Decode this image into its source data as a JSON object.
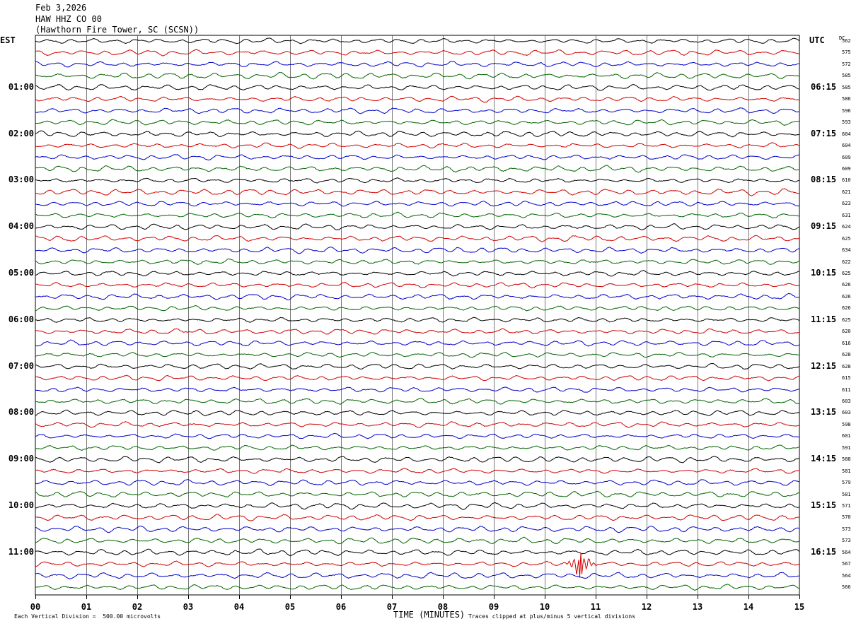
{
  "header": {
    "date": "Feb 3,2026",
    "station": "HAW HHZ CO 00",
    "location": "(Hawthorn Fire Tower, SC (SCSN))"
  },
  "left_zone_label": "EST",
  "right_zone_label": "UTC",
  "dc_label": "DC",
  "x_axis_title": "TIME (MINUTES)",
  "footer": {
    "scale_note": "Each Vertical Division =  500.00 microvolts",
    "clip_note": "Traces clipped at plus/minus 5 vertical divisions"
  },
  "chart_data": {
    "type": "line",
    "title": "",
    "xlabel": "TIME (MINUTES)",
    "xlim": [
      0,
      15
    ],
    "x_ticks": [
      "00",
      "01",
      "02",
      "03",
      "04",
      "05",
      "06",
      "07",
      "08",
      "09",
      "10",
      "11",
      "12",
      "13",
      "14",
      "15"
    ],
    "left_hour_labels": [
      "01:00",
      "02:00",
      "03:00",
      "04:00",
      "05:00",
      "06:00",
      "07:00",
      "08:00",
      "09:00",
      "10:00",
      "11:00"
    ],
    "right_hour_labels": [
      "06:15",
      "07:15",
      "08:15",
      "09:15",
      "10:15",
      "11:15",
      "12:15",
      "13:15",
      "14:15",
      "15:15",
      "16:15"
    ],
    "trace_colors": [
      "#000000",
      "#d00000",
      "#0000c8",
      "#006400"
    ],
    "dc_offsets": [
      562,
      575,
      572,
      585,
      585,
      586,
      596,
      593,
      604,
      604,
      609,
      609,
      610,
      621,
      623,
      631,
      624,
      625,
      634,
      622,
      625,
      626,
      626,
      626,
      625,
      620,
      616,
      628,
      628,
      615,
      611,
      603,
      603,
      598,
      601,
      591,
      588,
      581,
      579,
      581,
      571,
      570,
      573,
      573,
      564,
      567,
      564,
      566
    ],
    "events": [
      {
        "trace_index": 45,
        "minute": 10.7,
        "amplitude": "large"
      }
    ]
  }
}
